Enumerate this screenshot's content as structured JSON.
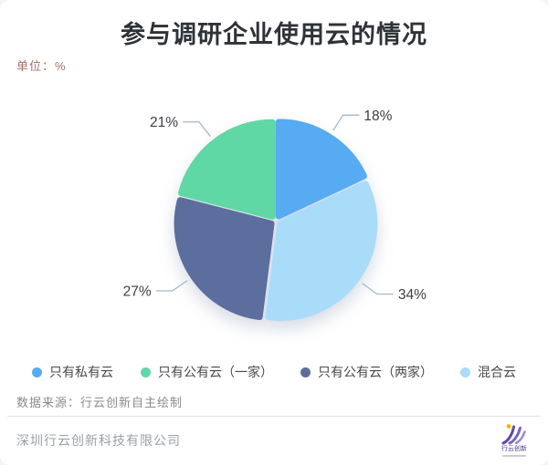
{
  "page": {
    "title": "参与调研企业使用云的情况",
    "unit_label": "单位：%",
    "source_note": "数据来源：行云创新自主绘制",
    "company": "深圳行云创新科技有限公司",
    "logo_text": "行云创新"
  },
  "colors": {
    "title_text": "#2f3338",
    "unit_text": "#a6706b",
    "leader_line": "#a4b8cb",
    "value_label": "#3c4046",
    "divider": "#e3e3e3"
  },
  "chart_data": {
    "type": "pie",
    "unit": "%",
    "title": "参与调研企业使用云的情况",
    "series": [
      {
        "label": "只有私有云",
        "value": 18,
        "color": "#57ABF2"
      },
      {
        "label": "只有公有云（一家）",
        "value": 21,
        "color": "#5FD8A5"
      },
      {
        "label": "只有公有云（两家）",
        "value": 27,
        "color": "#5C6E9E"
      },
      {
        "label": "混合云",
        "value": 34,
        "color": "#A9DCF8"
      }
    ],
    "draw_order": [
      0,
      3,
      2,
      1
    ],
    "start_angle_deg": 0,
    "direction": "clockwise",
    "label_format": "{value}%",
    "legend_position": "bottom",
    "exploded": true
  }
}
